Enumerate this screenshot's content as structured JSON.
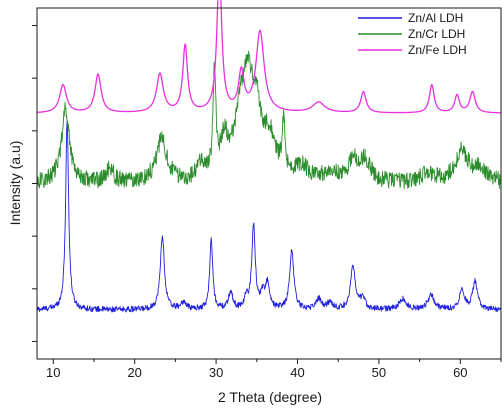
{
  "chart_data": {
    "type": "line",
    "xlabel": "2 Theta (degree)",
    "ylabel": "Intensity (a.u)",
    "xlim": [
      8,
      65
    ],
    "x_ticks": [
      10,
      20,
      30,
      40,
      50,
      60
    ],
    "ylim": [
      0,
      100
    ],
    "y_tick_labels_shown": false,
    "grid": false,
    "legend_position": "top-right",
    "series": [
      {
        "name": "Zn/Al LDH",
        "color": "#1f1fdc",
        "baseline": 14,
        "noise": 0.8,
        "peaks": [
          [
            11.7,
            54,
            0.22
          ],
          [
            23.4,
            21,
            0.3
          ],
          [
            26.0,
            2,
            0.4
          ],
          [
            29.4,
            20,
            0.22
          ],
          [
            31.8,
            5,
            0.3
          ],
          [
            33.7,
            3,
            0.3
          ],
          [
            34.6,
            24,
            0.25
          ],
          [
            35.7,
            4,
            0.3
          ],
          [
            36.3,
            7,
            0.3
          ],
          [
            39.3,
            17,
            0.3
          ],
          [
            42.6,
            3,
            0.4
          ],
          [
            44.0,
            2,
            0.4
          ],
          [
            46.8,
            12,
            0.35
          ],
          [
            48.0,
            3,
            0.4
          ],
          [
            52.9,
            3,
            0.5
          ],
          [
            56.4,
            4,
            0.5
          ],
          [
            60.2,
            6,
            0.35
          ],
          [
            61.8,
            8,
            0.35
          ]
        ]
      },
      {
        "name": "Zn/Cr LDH",
        "color": "#2a8c2a",
        "baseline": 50,
        "noise": 2.4,
        "peaks": [
          [
            11.5,
            21,
            0.6
          ],
          [
            17.0,
            4,
            0.5
          ],
          [
            23.3,
            12,
            0.8
          ],
          [
            28.2,
            5,
            0.5
          ],
          [
            29.8,
            30,
            0.2
          ],
          [
            31.0,
            10,
            0.6
          ],
          [
            33.0,
            18,
            0.9
          ],
          [
            34.0,
            22,
            0.7
          ],
          [
            35.0,
            14,
            0.6
          ],
          [
            36.5,
            12,
            1.0
          ],
          [
            38.3,
            14,
            0.2
          ],
          [
            40.5,
            4,
            1.0
          ],
          [
            44.0,
            3,
            0.8
          ],
          [
            46.8,
            6,
            0.7
          ],
          [
            48.3,
            6,
            0.8
          ],
          [
            56.0,
            3,
            0.8
          ],
          [
            60.2,
            9,
            1.0
          ],
          [
            62.5,
            4,
            0.8
          ]
        ]
      },
      {
        "name": "Zn/Fe LDH",
        "color": "#e830e0",
        "baseline": 70,
        "noise": 0,
        "peaks": [
          [
            11.2,
            8,
            0.5
          ],
          [
            15.5,
            11,
            0.45
          ],
          [
            23.1,
            11,
            0.5
          ],
          [
            26.2,
            19,
            0.35
          ],
          [
            30.4,
            41,
            0.35
          ],
          [
            33.1,
            11,
            0.4
          ],
          [
            35.4,
            23,
            0.6
          ],
          [
            42.6,
            3,
            0.9
          ],
          [
            48.1,
            6,
            0.4
          ],
          [
            56.5,
            8,
            0.35
          ],
          [
            59.6,
            5,
            0.35
          ],
          [
            61.5,
            6,
            0.4
          ]
        ]
      }
    ]
  }
}
